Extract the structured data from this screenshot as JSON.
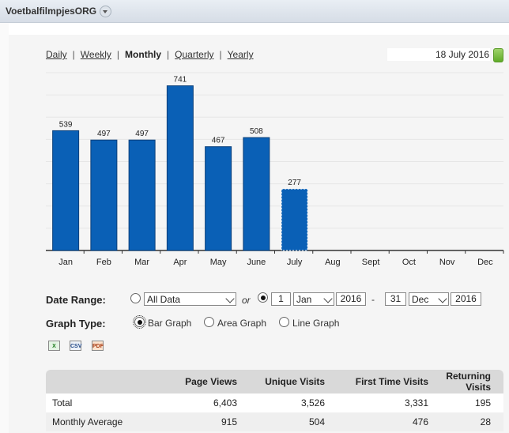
{
  "site": {
    "name": "VoetbalfilmpjesORG"
  },
  "periods": {
    "daily": "Daily",
    "weekly": "Weekly",
    "monthly": "Monthly",
    "quarterly": "Quarterly",
    "yearly": "Yearly",
    "separator": "|",
    "selected": "Monthly"
  },
  "current_date": "18 July 2016",
  "chart_data": {
    "type": "bar",
    "categories": [
      "Jan",
      "Feb",
      "Mar",
      "Apr",
      "May",
      "June",
      "July",
      "Aug",
      "Sept",
      "Oct",
      "Nov",
      "Dec"
    ],
    "values": [
      539,
      497,
      497,
      741,
      467,
      508,
      277,
      null,
      null,
      null,
      null,
      null
    ],
    "ylim": [
      0,
      800
    ],
    "bar_color": "#0a60b6",
    "partial_bar": "July",
    "grid": true
  },
  "form": {
    "date_range_label": "Date Range:",
    "all_data_option": "All Data",
    "or_text": "or",
    "from_day": "1",
    "from_month": "Jan",
    "from_year": "2016",
    "dash": "-",
    "to_day": "31",
    "to_month": "Dec",
    "to_year": "2016",
    "graph_type_label": "Graph Type:",
    "graph_types": [
      "Bar Graph",
      "Area Graph",
      "Line Graph"
    ],
    "selected_graph_type": "Bar Graph"
  },
  "export_icons": [
    {
      "name": "excel-export-icon",
      "label": "X"
    },
    {
      "name": "csv-export-icon",
      "label": "CSV"
    },
    {
      "name": "pdf-export-icon",
      "label": "PDF"
    }
  ],
  "stats": {
    "headers": [
      "",
      "Page Views",
      "Unique Visits",
      "First Time Visits",
      "Returning Visits"
    ],
    "rows": [
      [
        "Total",
        "6,403",
        "3,526",
        "3,331",
        "195"
      ],
      [
        "Monthly Average",
        "915",
        "504",
        "476",
        "28"
      ]
    ]
  }
}
